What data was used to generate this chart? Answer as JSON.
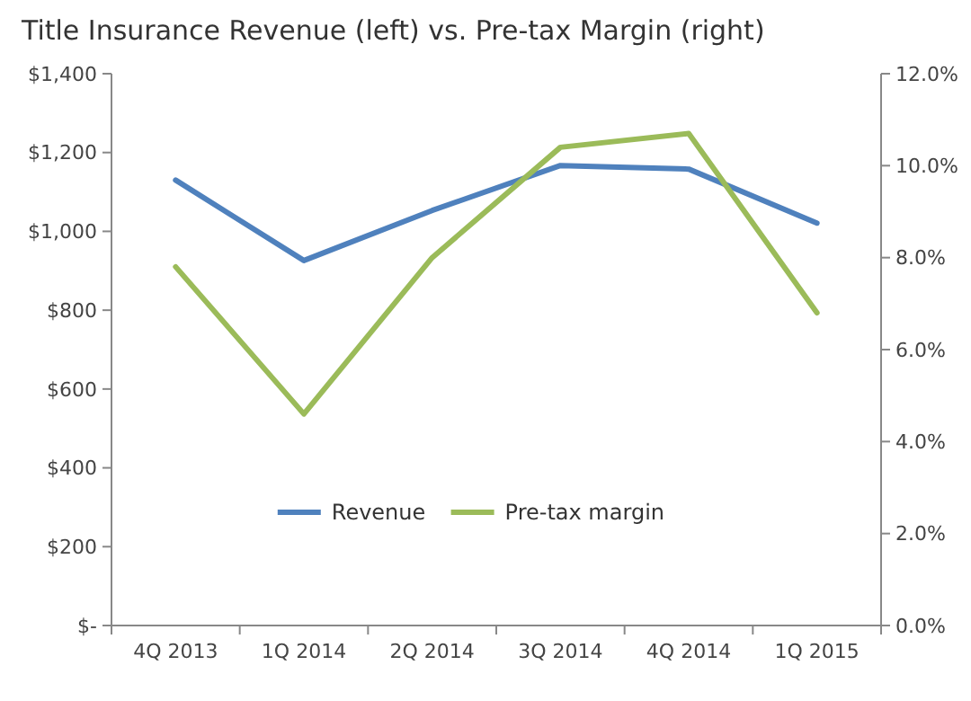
{
  "chart_data": {
    "type": "line",
    "title": "Title Insurance Revenue (left) vs. Pre-tax Margin (right)",
    "categories": [
      "4Q 2013",
      "1Q 2014",
      "2Q 2014",
      "3Q 2014",
      "4Q 2014",
      "1Q 2015"
    ],
    "series": [
      {
        "name": "Revenue",
        "color": "#4f81bd",
        "values": [
          1130,
          926,
          1053,
          1167,
          1158,
          1021
        ]
      },
      {
        "name": "Pre-tax margin",
        "color": "#9bbb59",
        "axis": "y2",
        "values": [
          7.8,
          4.6,
          8.0,
          10.4,
          10.7,
          6.8
        ]
      }
    ],
    "ylim": [
      0,
      1400
    ],
    "yticks": [
      {
        "value": 0,
        "label": "$-"
      },
      {
        "value": 200,
        "label": "$200"
      },
      {
        "value": 400,
        "label": "$400"
      },
      {
        "value": 600,
        "label": "$600"
      },
      {
        "value": 800,
        "label": "$800"
      },
      {
        "value": 1000,
        "label": "$1,000"
      },
      {
        "value": 1200,
        "label": "$1,200"
      },
      {
        "value": 1400,
        "label": "$1,400"
      }
    ],
    "y2lim": [
      0,
      12
    ],
    "y2ticks": [
      {
        "value": 0,
        "label": "0.0%"
      },
      {
        "value": 2,
        "label": "2.0%"
      },
      {
        "value": 4,
        "label": "4.0%"
      },
      {
        "value": 6,
        "label": "6.0%"
      },
      {
        "value": 8,
        "label": "8.0%"
      },
      {
        "value": 10,
        "label": "10.0%"
      },
      {
        "value": 12,
        "label": "12.0%"
      }
    ],
    "legend": "bottom",
    "marker": "none",
    "line_style": "solid"
  }
}
